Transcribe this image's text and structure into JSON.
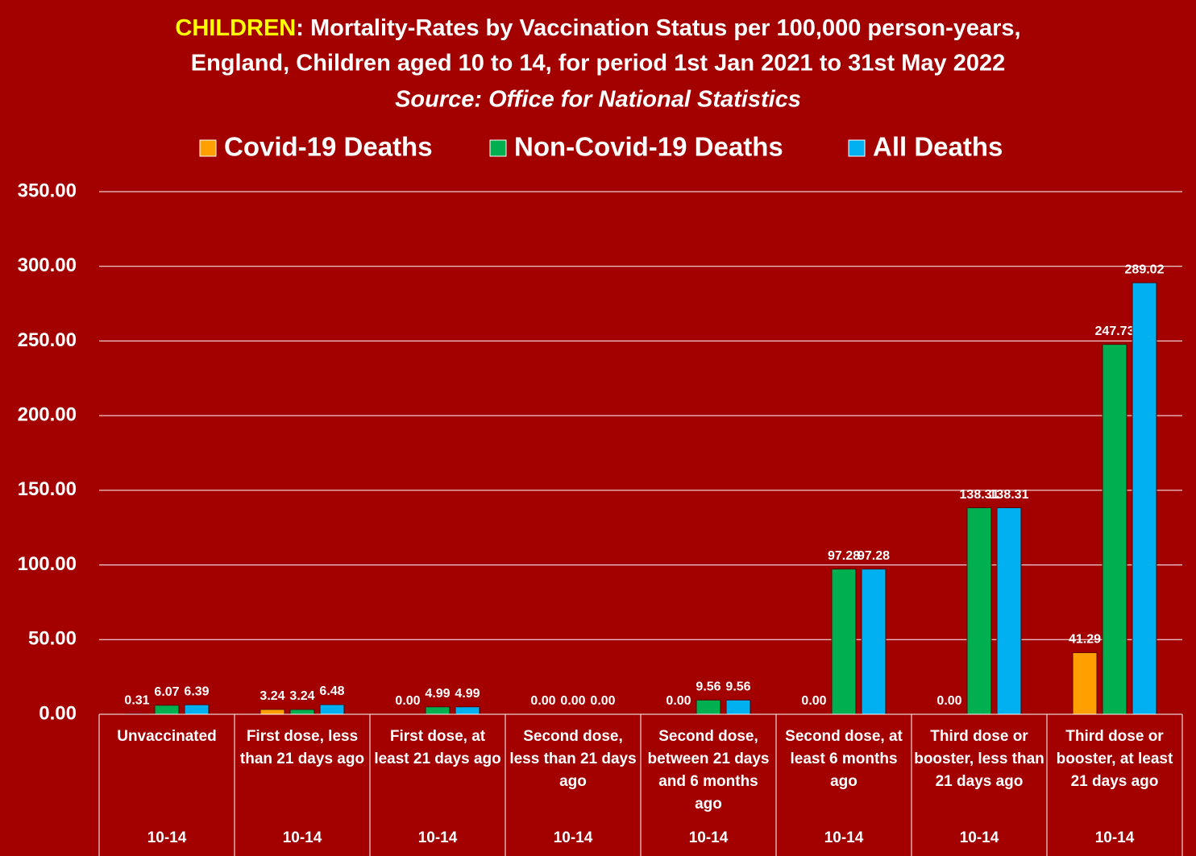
{
  "chart_data": {
    "type": "bar",
    "title_highlight": "CHILDREN",
    "title": [
      ": Mortality-Rates by Vaccination Status per 100,000 person-years,",
      "England, Children aged 10 to 14, for period 1st Jan 2021 to 31st May 2022"
    ],
    "subtitle": "Source: Office for National Statistics",
    "categories": [
      "Unvaccinated",
      "First dose, less than 21 days ago",
      "First dose, at least 21 days ago",
      "Second dose, less than 21 days ago",
      "Second dose, between 21 days and 6 months ago",
      "Second dose, at least 6 months ago",
      "Third dose or booster, less than 21 days ago",
      "Third dose or booster, at least 21 days ago"
    ],
    "group_labels": [
      "10-14",
      "10-14",
      "10-14",
      "10-14",
      "10-14",
      "10-14",
      "10-14",
      "10-14"
    ],
    "series": [
      {
        "name": "Covid-19 Deaths",
        "color": "#ffa000",
        "values": [
          0.31,
          3.24,
          0,
          0,
          0,
          0,
          0,
          41.29
        ],
        "value_labels": [
          "0.31",
          "3.24",
          "0.00",
          "0.00",
          "0.00",
          "0.00",
          "0.00",
          "41.29"
        ]
      },
      {
        "name": "Non-Covid-19 Deaths",
        "color": "#00b050",
        "values": [
          6.07,
          3.24,
          4.99,
          0,
          9.56,
          97.28,
          138.31,
          247.73
        ],
        "value_labels": [
          "6.07",
          "3.24",
          "4.99",
          "0.00",
          "9.56",
          "97.28",
          "138.31",
          "247.73"
        ]
      },
      {
        "name": "All Deaths",
        "color": "#00b0f0",
        "values": [
          6.39,
          6.48,
          4.99,
          0,
          9.56,
          97.28,
          138.31,
          289.02
        ],
        "value_labels": [
          "6.39",
          "6.48",
          "4.99",
          "0.00",
          "9.56",
          "97.28",
          "138.31",
          "289.02"
        ]
      }
    ],
    "ylim": [
      0,
      350
    ],
    "yticks": [
      {
        "value": 0,
        "label": "0.00"
      },
      {
        "value": 50,
        "label": "50.00"
      },
      {
        "value": 100,
        "label": "100.00"
      },
      {
        "value": 150,
        "label": "150.00"
      },
      {
        "value": 200,
        "label": "200.00"
      },
      {
        "value": 250,
        "label": "250.00"
      },
      {
        "value": 300,
        "label": "300.00"
      },
      {
        "value": 350,
        "label": "350.00"
      }
    ],
    "grid": true,
    "legend": "top"
  }
}
